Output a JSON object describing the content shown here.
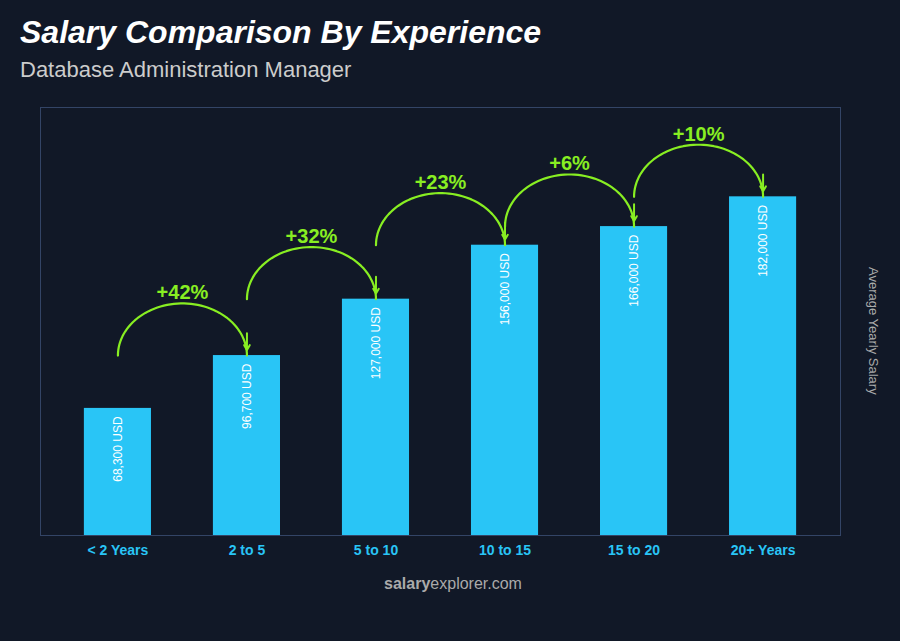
{
  "chart_data": {
    "type": "bar",
    "title": "Salary Comparison By Experience",
    "subtitle": "Database Administration Manager",
    "ylabel": "Average Yearly Salary",
    "watermark": [
      "salary",
      "explorer.com"
    ],
    "categories": [
      "< 2 Years",
      "2 to 5",
      "5 to 10",
      "10 to 15",
      "15 to 20",
      "20+ Years"
    ],
    "values": [
      68300,
      96700,
      127000,
      156000,
      166000,
      182000
    ],
    "value_labels": [
      "68,300 USD",
      "96,700 USD",
      "127,000 USD",
      "156,000 USD",
      "166,000 USD",
      "182,000 USD"
    ],
    "data_labels": true,
    "color": "#29c5f6",
    "ylim": [
      0,
      230000
    ],
    "tick_labels": "x",
    "grid": false,
    "annotations": [
      {
        "text": "+42%",
        "from": "< 2 Years",
        "to": "2 to 5",
        "color": "#88ee22"
      },
      {
        "text": "+32%",
        "from": "2 to 5",
        "to": "5 to 10",
        "color": "#88ee22"
      },
      {
        "text": "+23%",
        "from": "5 to 10",
        "to": "10 to 15",
        "color": "#88ee22"
      },
      {
        "text": "+6%",
        "from": "10 to 15",
        "to": "15 to 20",
        "color": "#88ee22"
      },
      {
        "text": "+10%",
        "from": "15 to 20",
        "to": "20+ Years",
        "color": "#88ee22"
      }
    ]
  }
}
